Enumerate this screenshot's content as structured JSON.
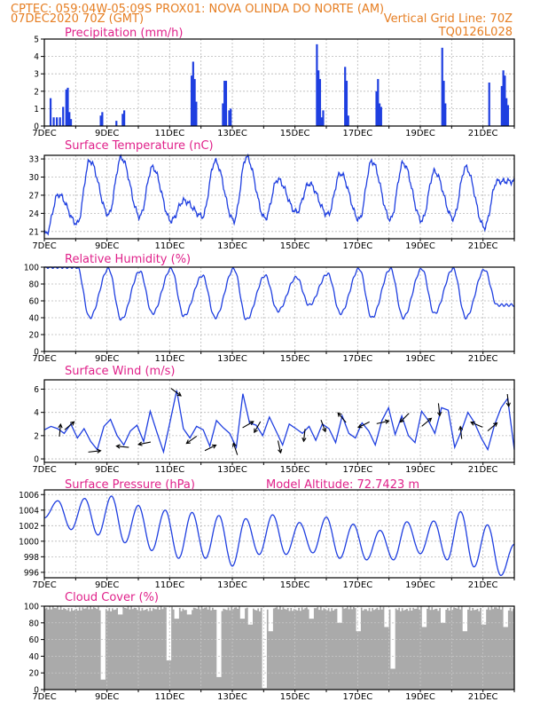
{
  "header": {
    "line1_left": "CPTEC:   059:04W-05:09S   PROX01: NOVA OLINDA DO NORTE (AM)",
    "line2_left": "07DEC2020 70Z (GMT)",
    "line2_right": "Vertical Grid Line: 70Z",
    "line3_right": "TQ0126L028"
  },
  "colors": {
    "header": "#e67e22",
    "title": "#e0218a",
    "series": "#1f3fe0",
    "cloud": "#aaaaaa"
  },
  "chart_data": [
    {
      "type": "bar",
      "title": "Precipitation (mm/h)",
      "x_labels": [
        "7DEC",
        "9DEC",
        "11DEC",
        "13DEC",
        "15DEC",
        "17DEC",
        "19DEC",
        "21DEC"
      ],
      "ylim": [
        0,
        5
      ],
      "yticks": [
        0,
        1,
        2,
        3,
        4,
        5
      ],
      "grid": true,
      "bars": [
        {
          "x": 0.2,
          "y": 1.6
        },
        {
          "x": 0.3,
          "y": 0.5
        },
        {
          "x": 0.4,
          "y": 0.5
        },
        {
          "x": 0.5,
          "y": 0.5
        },
        {
          "x": 0.6,
          "y": 1.1
        },
        {
          "x": 0.7,
          "y": 2.1
        },
        {
          "x": 0.75,
          "y": 2.2
        },
        {
          "x": 0.8,
          "y": 0.8
        },
        {
          "x": 0.85,
          "y": 0.4
        },
        {
          "x": 1.8,
          "y": 0.6
        },
        {
          "x": 1.85,
          "y": 0.8
        },
        {
          "x": 2.3,
          "y": 0.3
        },
        {
          "x": 2.5,
          "y": 0.7
        },
        {
          "x": 2.55,
          "y": 0.9
        },
        {
          "x": 4.7,
          "y": 2.9
        },
        {
          "x": 4.75,
          "y": 3.7
        },
        {
          "x": 4.8,
          "y": 2.7
        },
        {
          "x": 4.85,
          "y": 1.4
        },
        {
          "x": 5.7,
          "y": 1.3
        },
        {
          "x": 5.75,
          "y": 2.6
        },
        {
          "x": 5.8,
          "y": 2.6
        },
        {
          "x": 5.9,
          "y": 0.9
        },
        {
          "x": 5.95,
          "y": 1.0
        },
        {
          "x": 8.7,
          "y": 4.7
        },
        {
          "x": 8.75,
          "y": 3.2
        },
        {
          "x": 8.8,
          "y": 2.7
        },
        {
          "x": 8.85,
          "y": 0.5
        },
        {
          "x": 8.9,
          "y": 0.9
        },
        {
          "x": 9.6,
          "y": 3.4
        },
        {
          "x": 9.65,
          "y": 2.6
        },
        {
          "x": 9.7,
          "y": 0.6
        },
        {
          "x": 10.6,
          "y": 2.0
        },
        {
          "x": 10.65,
          "y": 2.7
        },
        {
          "x": 10.7,
          "y": 1.3
        },
        {
          "x": 10.75,
          "y": 1.1
        },
        {
          "x": 12.7,
          "y": 4.5
        },
        {
          "x": 12.75,
          "y": 2.6
        },
        {
          "x": 12.8,
          "y": 1.3
        },
        {
          "x": 14.2,
          "y": 2.5
        },
        {
          "x": 14.6,
          "y": 2.3
        },
        {
          "x": 14.65,
          "y": 3.2
        },
        {
          "x": 14.7,
          "y": 2.9
        },
        {
          "x": 14.75,
          "y": 1.6
        },
        {
          "x": 14.8,
          "y": 1.2
        }
      ]
    },
    {
      "type": "line",
      "title": "Surface Temperature (nC)",
      "x_labels": [
        "7DEC",
        "9DEC",
        "11DEC",
        "13DEC",
        "15DEC",
        "17DEC",
        "19DEC",
        "21DEC"
      ],
      "ylim": [
        19.8,
        33.6
      ],
      "yticks": [
        21,
        24,
        27,
        30,
        33
      ],
      "grid": true,
      "daily_min": [
        20.6,
        22.3,
        23.8,
        23.5,
        22.8,
        23.5,
        22.8,
        23.2,
        24.2,
        23.8,
        23.0,
        23.0,
        22.8,
        23.2,
        21.7
      ],
      "daily_max": [
        27.1,
        32.7,
        33.2,
        31.6,
        26.1,
        32.6,
        33.3,
        29.6,
        28.9,
        30.6,
        32.6,
        32.3,
        30.9,
        31.6,
        29.3
      ]
    },
    {
      "type": "line",
      "title": "Relative Humidity (%)",
      "x_labels": [
        "7DEC",
        "9DEC",
        "11DEC",
        "13DEC",
        "15DEC",
        "17DEC",
        "19DEC",
        "21DEC"
      ],
      "ylim": [
        0,
        100
      ],
      "yticks": [
        0,
        20,
        40,
        60,
        80,
        100
      ],
      "grid": true,
      "daily_max": [
        100,
        100,
        98,
        95,
        98,
        90,
        98,
        90,
        88,
        92,
        98,
        98,
        98,
        98,
        97
      ],
      "daily_min": [
        100,
        40,
        38,
        45,
        42,
        40,
        38,
        48,
        55,
        45,
        40,
        40,
        45,
        40,
        55
      ]
    },
    {
      "type": "line",
      "title": "Surface Wind (m/s)",
      "x_labels": [
        "7DEC",
        "9DEC",
        "11DEC",
        "13DEC",
        "15DEC",
        "17DEC",
        "19DEC",
        "21DEC"
      ],
      "ylim": [
        -0.3,
        6.8
      ],
      "yticks": [
        0,
        2,
        4,
        6
      ],
      "grid": true,
      "speed": [
        2.5,
        2.8,
        2.6,
        2.2,
        3.0,
        1.8,
        2.6,
        1.5,
        0.8,
        2.8,
        3.4,
        2.0,
        1.2,
        2.4,
        2.9,
        1.5,
        4.1,
        2.3,
        0.6,
        3.2,
        5.9,
        2.6,
        1.8,
        2.8,
        2.5,
        1.1,
        3.3,
        2.7,
        2.2,
        1.0,
        5.6,
        3.1,
        2.9,
        2.0,
        3.6,
        2.4,
        1.2,
        3.0,
        2.6,
        2.2,
        2.8,
        1.6,
        3.0,
        2.6,
        1.4,
        3.7,
        2.2,
        1.8,
        3.1,
        2.4,
        1.2,
        3.3,
        4.4,
        2.1,
        3.7,
        2.0,
        1.4,
        4.1,
        3.3,
        2.2,
        4.4,
        4.2,
        1.0,
        2.4,
        4.0,
        3.1,
        1.8,
        0.8,
        2.9,
        4.4,
        5.2,
        0.8
      ],
      "arrows": [
        {
          "x": 0.5,
          "u": 0.1,
          "v": 1
        },
        {
          "x": 0.8,
          "u": 0.6,
          "v": 0.5
        },
        {
          "x": 1.6,
          "u": 0.9,
          "v": 0.1
        },
        {
          "x": 2.5,
          "u": -1,
          "v": 0.1
        },
        {
          "x": 3.2,
          "u": -1,
          "v": -0.2
        },
        {
          "x": 4.2,
          "u": 0.8,
          "v": -0.6
        },
        {
          "x": 4.7,
          "u": -0.7,
          "v": -0.5
        },
        {
          "x": 5.3,
          "u": 0.6,
          "v": 0.3
        },
        {
          "x": 6.1,
          "u": -0.2,
          "v": 0.6
        },
        {
          "x": 6.5,
          "u": 0.7,
          "v": 0.4
        },
        {
          "x": 6.8,
          "u": -0.4,
          "v": -0.7
        },
        {
          "x": 7.5,
          "u": 0.2,
          "v": -0.9
        },
        {
          "x": 8.3,
          "u": -0.1,
          "v": -0.9
        },
        {
          "x": 8.9,
          "u": 0.3,
          "v": -0.8
        },
        {
          "x": 9.5,
          "u": -0.5,
          "v": 0.6
        },
        {
          "x": 10.2,
          "u": -0.8,
          "v": -0.4
        },
        {
          "x": 10.8,
          "u": 0.9,
          "v": 0.2
        },
        {
          "x": 11.5,
          "u": -0.6,
          "v": -0.6
        },
        {
          "x": 12.2,
          "u": 0.6,
          "v": 0.5
        },
        {
          "x": 12.6,
          "u": 0.1,
          "v": -0.9
        },
        {
          "x": 13.3,
          "u": -0.1,
          "v": 0.9
        },
        {
          "x": 13.8,
          "u": -0.7,
          "v": 0.3
        },
        {
          "x": 14.3,
          "u": 0.7,
          "v": 0.6
        },
        {
          "x": 14.8,
          "u": 0.1,
          "v": -0.9
        }
      ]
    },
    {
      "type": "line",
      "title": "Surface Pressure (hPa)",
      "annotation": "Model Altitude: 72.7423  m",
      "x_labels": [
        "7DEC",
        "9DEC",
        "11DEC",
        "13DEC",
        "15DEC",
        "17DEC",
        "19DEC",
        "21DEC"
      ],
      "ylim": [
        995.3,
        1006.6
      ],
      "yticks": [
        996,
        998,
        1000,
        1002,
        1004,
        1006
      ],
      "grid": true,
      "values": [
        1003.0,
        1005.2,
        1001.5,
        1005.5,
        1000.8,
        1005.8,
        999.8,
        1004.6,
        998.8,
        1004.0,
        997.8,
        1003.7,
        997.8,
        1003.3,
        996.8,
        1002.9,
        998.3,
        1003.4,
        998.3,
        1002.4,
        998.5,
        1003.1,
        997.8,
        1002.2,
        997.6,
        1001.4,
        997.6,
        1002.5,
        998.4,
        1002.6,
        997.6,
        1003.8,
        996.7,
        1002.1,
        995.6,
        999.6
      ]
    },
    {
      "type": "bar",
      "title": "Cloud Cover (%)",
      "x_labels": [
        "7DEC",
        "9DEC",
        "11DEC",
        "13DEC",
        "15DEC",
        "17DEC",
        "19DEC",
        "21DEC"
      ],
      "ylim": [
        0,
        100
      ],
      "yticks": [
        0,
        20,
        40,
        60,
        80,
        100
      ],
      "grid": true,
      "base_level": 97,
      "dips": [
        {
          "x": 1.85,
          "y": 12
        },
        {
          "x": 2.4,
          "y": 90
        },
        {
          "x": 3.95,
          "y": 35
        },
        {
          "x": 4.2,
          "y": 85
        },
        {
          "x": 4.6,
          "y": 90
        },
        {
          "x": 5.55,
          "y": 15
        },
        {
          "x": 6.3,
          "y": 85
        },
        {
          "x": 6.55,
          "y": 78
        },
        {
          "x": 7.0,
          "y": 2
        },
        {
          "x": 7.2,
          "y": 70
        },
        {
          "x": 8.5,
          "y": 85
        },
        {
          "x": 9.4,
          "y": 80
        },
        {
          "x": 10.0,
          "y": 70
        },
        {
          "x": 10.9,
          "y": 75
        },
        {
          "x": 11.1,
          "y": 25
        },
        {
          "x": 12.1,
          "y": 75
        },
        {
          "x": 12.7,
          "y": 80
        },
        {
          "x": 13.4,
          "y": 70
        },
        {
          "x": 14.0,
          "y": 78
        },
        {
          "x": 14.7,
          "y": 75
        }
      ]
    }
  ]
}
